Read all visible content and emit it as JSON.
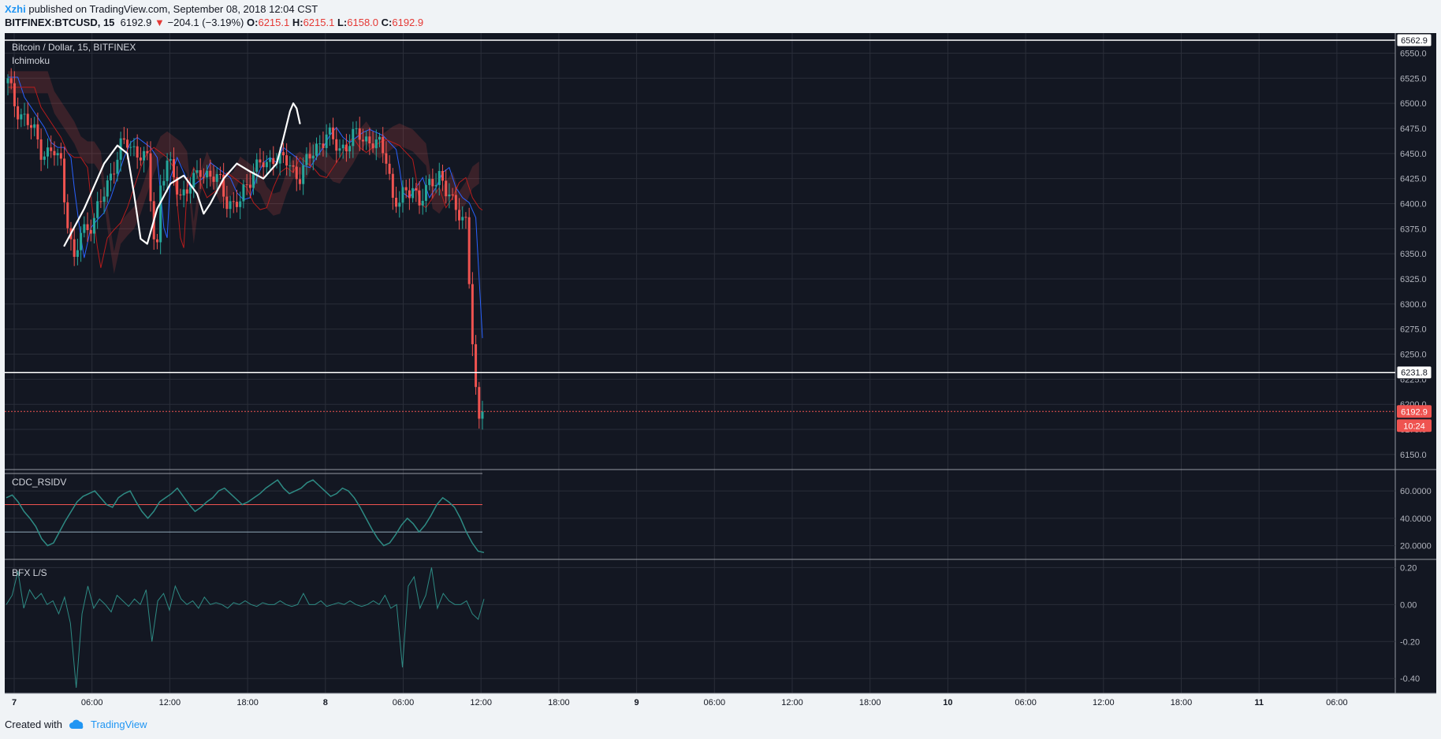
{
  "header": {
    "author": "Xzhi",
    "published": " published on TradingView.com, September 08, 2018 12:04 CST",
    "symbol": "BITFINEX:BTCUSD, 15",
    "last": "6192.9",
    "change": "−204.1 (−3.19%)",
    "o_label": "O:",
    "o_val": "6215.1",
    "h_label": "H:",
    "h_val": "6215.1",
    "l_label": "L:",
    "l_val": "6158.0",
    "c_label": "C:",
    "c_val": "6192.9"
  },
  "legend": {
    "title": "Bitcoin / Dollar, 15, BITFINEX",
    "indicator": "Ichimoku",
    "rsi_name": "CDC_RSIDV",
    "ls_name": "BFX L/S"
  },
  "badges": {
    "top_line": "6562.9",
    "mid_line": "6231.8",
    "price": "6192.9",
    "countdown": "10:24"
  },
  "footer": {
    "created": "Created with",
    "brand": "TradingView"
  },
  "colors": {
    "bg": "#131722",
    "grid": "#2a2e39",
    "up": "#26a69a",
    "down": "#ef5350",
    "text": "#b2b5be",
    "white": "#ffffff",
    "indicator": "#2e8b84"
  },
  "chart_data": [
    {
      "type": "candlestick",
      "title": "Bitcoin / Dollar, 15, BITFINEX",
      "ylim": [
        6135,
        6570
      ],
      "y_ticks": [
        6150,
        6175,
        6200,
        6225,
        6250,
        6275,
        6300,
        6325,
        6350,
        6375,
        6400,
        6425,
        6450,
        6475,
        6500,
        6525,
        6550
      ],
      "x_ticks": [
        "7",
        "06:00",
        "12:00",
        "18:00",
        "8",
        "06:00",
        "12:00",
        "18:00",
        "9",
        "06:00",
        "12:00",
        "18:00",
        "10",
        "06:00",
        "12:00",
        "18:00",
        "11",
        "06:00"
      ],
      "price_path": [
        [
          0,
          6520
        ],
        [
          2,
          6500
        ],
        [
          4,
          6490
        ],
        [
          6,
          6480
        ],
        [
          8,
          6470
        ],
        [
          10,
          6455
        ],
        [
          12,
          6450
        ],
        [
          14,
          6450
        ],
        [
          16,
          6440
        ],
        [
          17,
          6410
        ],
        [
          18,
          6385
        ],
        [
          19,
          6360
        ],
        [
          20,
          6340
        ],
        [
          22,
          6370
        ],
        [
          24,
          6378
        ],
        [
          26,
          6385
        ],
        [
          28,
          6400
        ],
        [
          30,
          6420
        ],
        [
          32,
          6440
        ],
        [
          34,
          6455
        ],
        [
          36,
          6460
        ],
        [
          38,
          6455
        ],
        [
          40,
          6450
        ],
        [
          42,
          6440
        ],
        [
          44,
          6370
        ],
        [
          45,
          6360
        ],
        [
          46,
          6420
        ],
        [
          48,
          6440
        ],
        [
          50,
          6425
        ],
        [
          52,
          6410
        ],
        [
          54,
          6415
        ],
        [
          56,
          6420
        ],
        [
          58,
          6435
        ],
        [
          60,
          6430
        ],
        [
          62,
          6425
        ],
        [
          64,
          6420
        ],
        [
          66,
          6405
        ],
        [
          68,
          6398
        ],
        [
          70,
          6400
        ],
        [
          72,
          6420
        ],
        [
          74,
          6435
        ],
        [
          76,
          6440
        ],
        [
          78,
          6435
        ],
        [
          80,
          6450
        ],
        [
          82,
          6445
        ],
        [
          84,
          6440
        ],
        [
          86,
          6432
        ],
        [
          88,
          6430
        ],
        [
          90,
          6440
        ],
        [
          92,
          6450
        ],
        [
          94,
          6462
        ],
        [
          96,
          6470
        ],
        [
          98,
          6460
        ],
        [
          100,
          6455
        ],
        [
          102,
          6460
        ],
        [
          104,
          6465
        ],
        [
          106,
          6468
        ],
        [
          108,
          6465
        ],
        [
          110,
          6462
        ],
        [
          112,
          6455
        ],
        [
          114,
          6448
        ],
        [
          115,
          6430
        ],
        [
          116,
          6405
        ],
        [
          118,
          6400
        ],
        [
          120,
          6410
        ],
        [
          122,
          6420
        ],
        [
          124,
          6400
        ],
        [
          126,
          6410
        ],
        [
          128,
          6425
        ],
        [
          130,
          6430
        ],
        [
          132,
          6410
        ],
        [
          134,
          6400
        ],
        [
          136,
          6395
        ],
        [
          138,
          6380
        ],
        [
          139,
          6320
        ],
        [
          140,
          6260
        ],
        [
          141,
          6210
        ],
        [
          142,
          6185
        ],
        [
          143,
          6192.9
        ]
      ],
      "horizontal_lines": [
        6562.9,
        6231.8,
        6192.9
      ],
      "drawing": [
        [
          0,
          6358
        ],
        [
          6,
          6395
        ],
        [
          12,
          6440
        ],
        [
          16,
          6458
        ],
        [
          19,
          6450
        ],
        [
          21,
          6410
        ],
        [
          23,
          6365
        ],
        [
          25,
          6360
        ],
        [
          28,
          6395
        ],
        [
          32,
          6420
        ],
        [
          36,
          6428
        ],
        [
          40,
          6410
        ],
        [
          42,
          6390
        ],
        [
          44,
          6400
        ],
        [
          48,
          6425
        ],
        [
          52,
          6440
        ],
        [
          56,
          6432
        ],
        [
          60,
          6425
        ],
        [
          64,
          6440
        ],
        [
          66,
          6465
        ],
        [
          68,
          6492
        ],
        [
          69,
          6500
        ],
        [
          70,
          6495
        ],
        [
          71,
          6480
        ]
      ]
    },
    {
      "type": "line",
      "title": "CDC_RSIDV",
      "ylim": [
        10,
        75
      ],
      "y_ticks": [
        20,
        40,
        60
      ],
      "levels": [
        50,
        30
      ],
      "values": [
        55,
        57,
        52,
        45,
        40,
        34,
        25,
        20,
        22,
        30,
        38,
        45,
        52,
        56,
        58,
        60,
        55,
        50,
        48,
        55,
        58,
        60,
        52,
        45,
        40,
        45,
        52,
        55,
        58,
        62,
        56,
        50,
        45,
        48,
        52,
        55,
        60,
        62,
        58,
        54,
        50,
        52,
        55,
        58,
        62,
        65,
        68,
        62,
        58,
        60,
        62,
        66,
        68,
        64,
        60,
        56,
        58,
        62,
        60,
        55,
        48,
        40,
        32,
        25,
        20,
        22,
        28,
        35,
        40,
        36,
        30,
        35,
        42,
        50,
        55,
        52,
        48,
        40,
        30,
        22,
        16,
        15
      ]
    },
    {
      "type": "line",
      "title": "BFX L/S",
      "ylim": [
        -0.48,
        0.24
      ],
      "y_ticks": [
        0.2,
        0.0,
        -0.2,
        -0.4
      ],
      "values": [
        0.0,
        0.05,
        0.18,
        -0.02,
        0.08,
        0.03,
        0.06,
        0.0,
        0.02,
        -0.05,
        0.04,
        -0.1,
        -0.45,
        -0.05,
        0.1,
        -0.02,
        0.03,
        0.0,
        -0.04,
        0.05,
        0.02,
        -0.01,
        0.03,
        0.0,
        0.08,
        -0.2,
        0.02,
        0.06,
        -0.03,
        0.1,
        0.03,
        0.0,
        0.02,
        -0.02,
        0.04,
        0.0,
        0.01,
        0.0,
        -0.02,
        0.01,
        0.0,
        0.02,
        0.0,
        -0.01,
        0.01,
        0.0,
        0.0,
        0.02,
        0.0,
        -0.01,
        0.0,
        0.06,
        0.0,
        0.0,
        0.02,
        -0.01,
        0.0,
        0.01,
        0.0,
        0.02,
        0.0,
        -0.01,
        0.0,
        0.02,
        0.0,
        0.05,
        -0.02,
        0.0,
        -0.34,
        0.1,
        0.15,
        -0.02,
        0.05,
        0.2,
        -0.02,
        0.06,
        0.02,
        0.0,
        0.0,
        0.02,
        -0.05,
        -0.08,
        0.03
      ]
    }
  ]
}
